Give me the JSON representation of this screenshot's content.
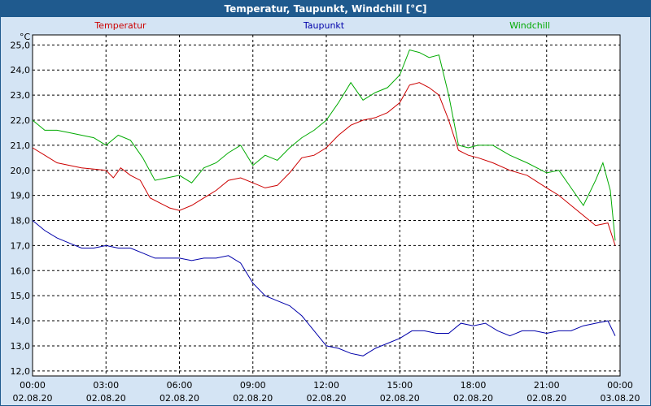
{
  "window": {
    "title": "Temperatur, Taupunkt, Windchill [°C]"
  },
  "chart_data": {
    "type": "line",
    "title": "Temperatur, Taupunkt, Windchill [°C]",
    "ylabel": "°C",
    "ylim": [
      11.8,
      25.4
    ],
    "xlim": [
      0,
      24
    ],
    "grid": true,
    "y_ticks": [
      "12,0",
      "13,0",
      "14,0",
      "15,0",
      "16,0",
      "17,0",
      "18,0",
      "19,0",
      "20,0",
      "21,0",
      "22,0",
      "23,0",
      "24,0",
      "25,0"
    ],
    "x_ticks": [
      {
        "time": "00:00",
        "date": "02.08.20"
      },
      {
        "time": "03:00",
        "date": "02.08.20"
      },
      {
        "time": "06:00",
        "date": "02.08.20"
      },
      {
        "time": "09:00",
        "date": "02.08.20"
      },
      {
        "time": "12:00",
        "date": "02.08.20"
      },
      {
        "time": "15:00",
        "date": "02.08.20"
      },
      {
        "time": "18:00",
        "date": "02.08.20"
      },
      {
        "time": "21:00",
        "date": "02.08.20"
      },
      {
        "time": "00:00",
        "date": "03.08.20"
      }
    ],
    "series": [
      {
        "name": "Temperatur",
        "color": "#cc0000",
        "x": [
          0,
          0.5,
          1,
          1.5,
          2,
          2.5,
          3,
          3.3,
          3.6,
          4,
          4.4,
          4.8,
          5.2,
          5.6,
          6,
          6.5,
          7,
          7.5,
          8,
          8.5,
          9,
          9.5,
          10,
          10.5,
          11,
          11.5,
          12,
          12.5,
          13,
          13.5,
          14,
          14.5,
          15,
          15.4,
          15.8,
          16.2,
          16.6,
          17,
          17.4,
          17.8,
          18.2,
          18.8,
          19.5,
          20.2,
          21,
          21.5,
          22,
          22.5,
          23,
          23.5,
          23.8
        ],
        "values": [
          20.9,
          20.6,
          20.3,
          20.2,
          20.1,
          20.05,
          20.0,
          19.7,
          20.1,
          19.8,
          19.6,
          18.9,
          18.7,
          18.5,
          18.4,
          18.6,
          18.9,
          19.2,
          19.6,
          19.7,
          19.5,
          19.3,
          19.4,
          19.9,
          20.5,
          20.6,
          20.9,
          21.4,
          21.8,
          22.0,
          22.1,
          22.3,
          22.7,
          23.4,
          23.5,
          23.3,
          23.0,
          22.0,
          20.8,
          20.6,
          20.5,
          20.3,
          20.0,
          19.8,
          19.3,
          19.0,
          18.6,
          18.2,
          17.8,
          17.9,
          17.0
        ]
      },
      {
        "name": "Taupunkt",
        "color": "#0000aa",
        "x": [
          0,
          0.5,
          1,
          1.5,
          2,
          2.5,
          3,
          3.5,
          4,
          4.5,
          5,
          5.5,
          6,
          6.5,
          7,
          7.5,
          8,
          8.5,
          9,
          9.5,
          10,
          10.5,
          11,
          11.5,
          12,
          12.5,
          13,
          13.5,
          14,
          14.5,
          15,
          15.5,
          16,
          16.5,
          17,
          17.5,
          18,
          18.5,
          19,
          19.5,
          20,
          20.5,
          21,
          21.5,
          22,
          22.5,
          23,
          23.5,
          23.8
        ],
        "values": [
          18.0,
          17.6,
          17.3,
          17.1,
          16.9,
          16.9,
          17.0,
          16.9,
          16.9,
          16.7,
          16.5,
          16.5,
          16.5,
          16.4,
          16.5,
          16.5,
          16.6,
          16.3,
          15.5,
          15.0,
          14.8,
          14.6,
          14.2,
          13.6,
          13.0,
          12.9,
          12.7,
          12.6,
          12.9,
          13.1,
          13.3,
          13.6,
          13.6,
          13.5,
          13.5,
          13.9,
          13.8,
          13.9,
          13.6,
          13.4,
          13.6,
          13.6,
          13.5,
          13.6,
          13.6,
          13.8,
          13.9,
          14.0,
          13.4
        ]
      },
      {
        "name": "Windchill",
        "color": "#00aa00",
        "x": [
          0,
          0.5,
          1,
          1.5,
          2,
          2.5,
          3,
          3.5,
          4,
          4.5,
          5,
          5.5,
          6,
          6.5,
          7,
          7.5,
          8,
          8.5,
          9,
          9.5,
          10,
          10.5,
          11,
          11.5,
          12,
          12.5,
          13,
          13.5,
          14,
          14.5,
          15,
          15.4,
          15.8,
          16.2,
          16.6,
          17,
          17.4,
          17.8,
          18.2,
          18.8,
          19.5,
          20.2,
          21,
          21.5,
          22,
          22.5,
          23,
          23.3,
          23.6,
          23.8
        ],
        "values": [
          22.0,
          21.6,
          21.6,
          21.5,
          21.4,
          21.3,
          21.0,
          21.4,
          21.2,
          20.5,
          19.6,
          19.7,
          19.8,
          19.5,
          20.1,
          20.3,
          20.7,
          21.0,
          20.2,
          20.6,
          20.4,
          20.9,
          21.3,
          21.6,
          22.0,
          22.7,
          23.5,
          22.8,
          23.1,
          23.3,
          23.8,
          24.8,
          24.7,
          24.5,
          24.6,
          23.0,
          21.0,
          20.9,
          21.0,
          21.0,
          20.6,
          20.3,
          19.9,
          20.0,
          19.3,
          18.6,
          19.6,
          20.3,
          19.2,
          17.2
        ]
      }
    ]
  }
}
